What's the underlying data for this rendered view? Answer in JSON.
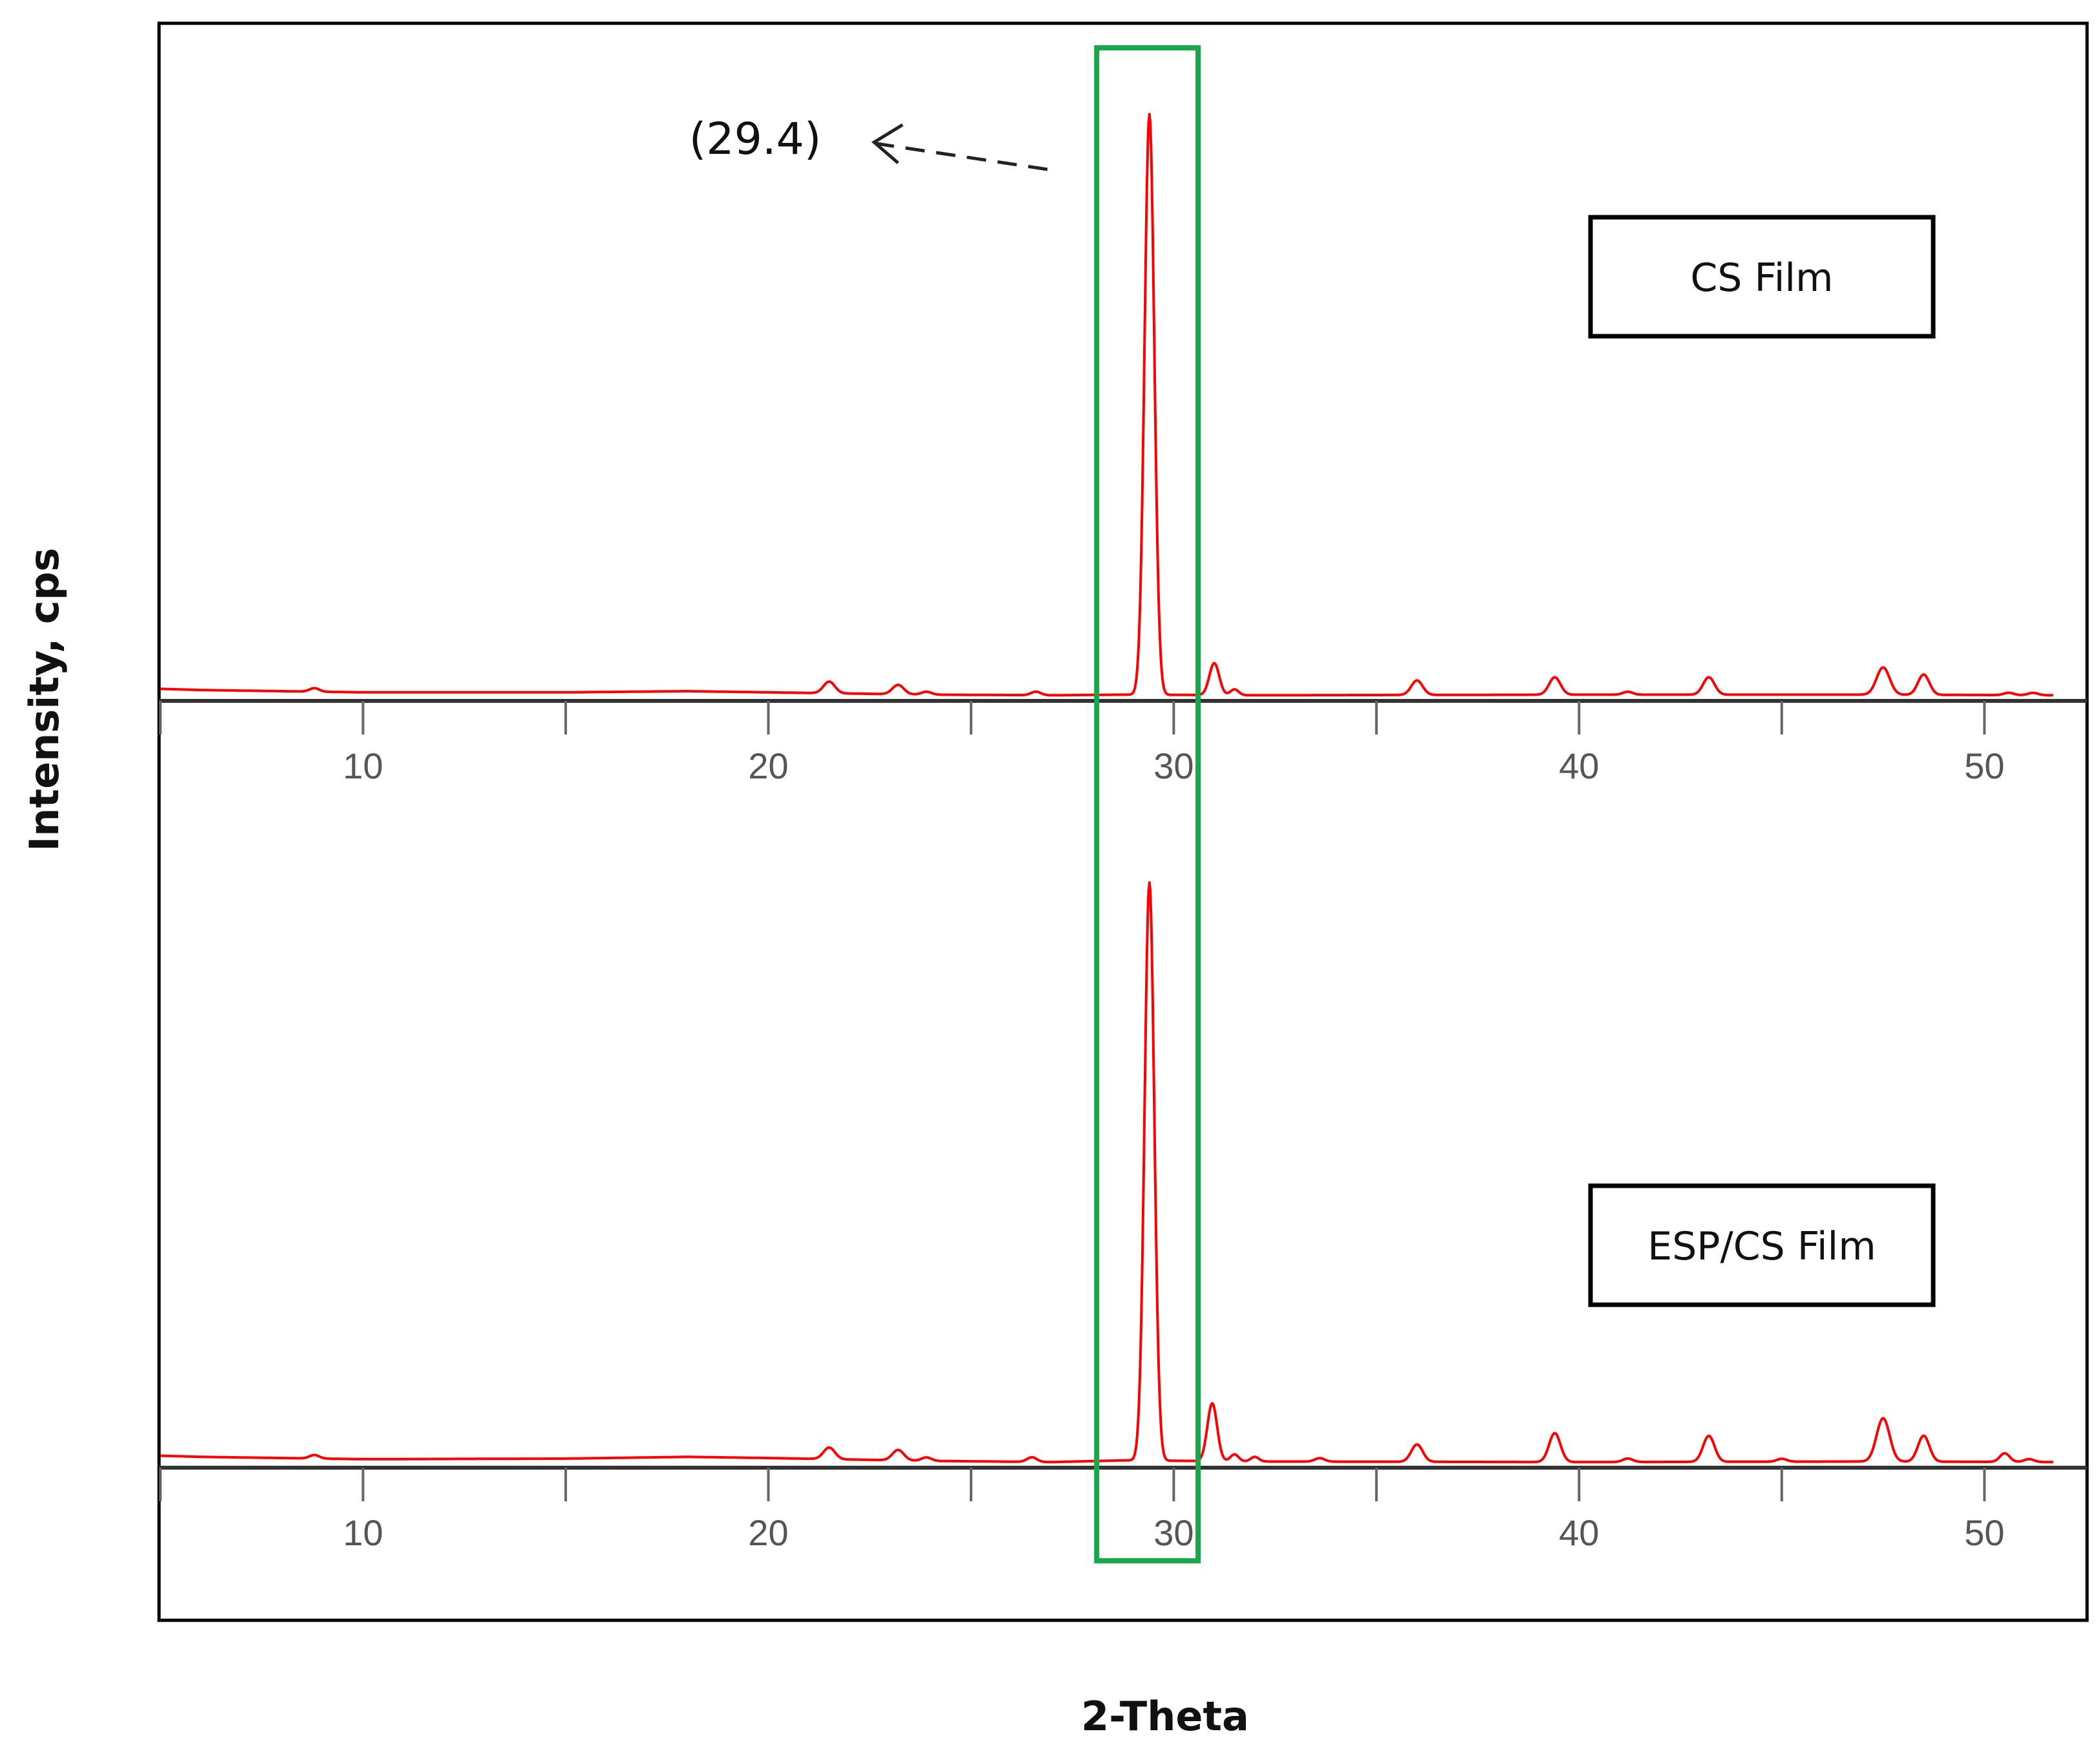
{
  "chart_data": {
    "type": "line",
    "ylabel": "Intensity, cps",
    "xlabel": "2-Theta",
    "xlim": [
      5,
      52.5
    ],
    "x_ticks": [
      10,
      20,
      30,
      40,
      50
    ],
    "y_ticks_shown": false,
    "grid": false,
    "series_color": "#ff0000",
    "highlight": {
      "x_range": [
        28.1,
        30.6
      ],
      "color": "#1aa64a"
    },
    "annotation": {
      "text": "(29.4)",
      "x": 29.4
    },
    "panels": [
      {
        "legend": "CS Film",
        "legend_placement": "top-right",
        "baseline": [
          [
            5,
            0.014
          ],
          [
            6,
            0.012
          ],
          [
            10,
            0.008
          ],
          [
            15,
            0.008
          ],
          [
            18,
            0.01
          ],
          [
            20,
            0.008
          ],
          [
            24,
            0.004
          ],
          [
            27,
            0.003
          ],
          [
            28.8,
            0.004
          ],
          [
            32,
            0.003
          ],
          [
            40,
            0.004
          ],
          [
            47,
            0.004
          ],
          [
            52,
            0.003
          ]
        ],
        "peaks": [
          {
            "x": 8.8,
            "h": 0.006,
            "w": 0.12
          },
          {
            "x": 21.5,
            "h": 0.02,
            "w": 0.14
          },
          {
            "x": 23.2,
            "h": 0.016,
            "w": 0.14
          },
          {
            "x": 23.9,
            "h": 0.005,
            "w": 0.12
          },
          {
            "x": 26.6,
            "h": 0.006,
            "w": 0.12
          },
          {
            "x": 29.4,
            "h": 1.0,
            "w": 0.12
          },
          {
            "x": 31.0,
            "h": 0.055,
            "w": 0.12
          },
          {
            "x": 31.5,
            "h": 0.01,
            "w": 0.1
          },
          {
            "x": 36.0,
            "h": 0.025,
            "w": 0.14
          },
          {
            "x": 39.4,
            "h": 0.03,
            "w": 0.14
          },
          {
            "x": 41.2,
            "h": 0.005,
            "w": 0.12
          },
          {
            "x": 43.2,
            "h": 0.03,
            "w": 0.14
          },
          {
            "x": 47.5,
            "h": 0.047,
            "w": 0.16
          },
          {
            "x": 48.5,
            "h": 0.035,
            "w": 0.14
          },
          {
            "x": 50.6,
            "h": 0.004,
            "w": 0.12
          },
          {
            "x": 51.2,
            "h": 0.004,
            "w": 0.12
          }
        ]
      },
      {
        "legend": "ESP/CS Film",
        "legend_placement": "right",
        "baseline": [
          [
            5,
            0.014
          ],
          [
            6,
            0.012
          ],
          [
            10,
            0.008
          ],
          [
            15,
            0.009
          ],
          [
            18,
            0.012
          ],
          [
            20,
            0.01
          ],
          [
            24,
            0.005
          ],
          [
            27,
            0.003
          ],
          [
            28.8,
            0.006
          ],
          [
            32,
            0.004
          ],
          [
            40,
            0.003
          ],
          [
            47,
            0.004
          ],
          [
            52,
            0.003
          ]
        ],
        "peaks": [
          {
            "x": 8.8,
            "h": 0.006,
            "w": 0.12
          },
          {
            "x": 21.5,
            "h": 0.02,
            "w": 0.14
          },
          {
            "x": 23.2,
            "h": 0.018,
            "w": 0.14
          },
          {
            "x": 23.9,
            "h": 0.006,
            "w": 0.12
          },
          {
            "x": 26.5,
            "h": 0.008,
            "w": 0.12
          },
          {
            "x": 29.4,
            "h": 1.0,
            "w": 0.12
          },
          {
            "x": 30.95,
            "h": 0.1,
            "w": 0.12
          },
          {
            "x": 31.5,
            "h": 0.012,
            "w": 0.1
          },
          {
            "x": 32.0,
            "h": 0.008,
            "w": 0.1
          },
          {
            "x": 33.6,
            "h": 0.006,
            "w": 0.12
          },
          {
            "x": 36.0,
            "h": 0.03,
            "w": 0.14
          },
          {
            "x": 39.4,
            "h": 0.05,
            "w": 0.14
          },
          {
            "x": 41.2,
            "h": 0.006,
            "w": 0.12
          },
          {
            "x": 43.2,
            "h": 0.045,
            "w": 0.14
          },
          {
            "x": 45.0,
            "h": 0.005,
            "w": 0.12
          },
          {
            "x": 47.5,
            "h": 0.075,
            "w": 0.16
          },
          {
            "x": 48.5,
            "h": 0.045,
            "w": 0.14
          },
          {
            "x": 50.5,
            "h": 0.015,
            "w": 0.12
          },
          {
            "x": 51.1,
            "h": 0.005,
            "w": 0.12
          }
        ]
      }
    ]
  }
}
